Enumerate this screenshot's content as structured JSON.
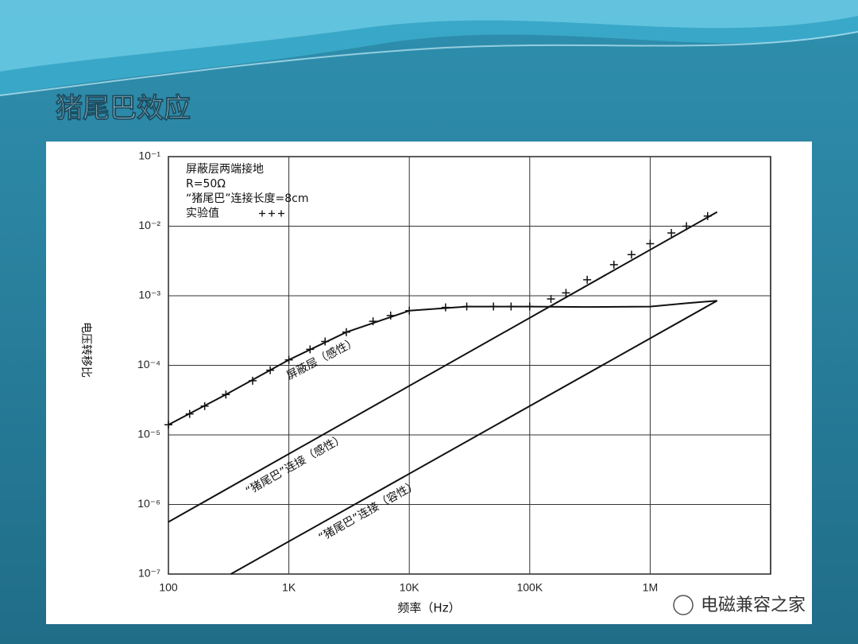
{
  "slide_title": "猪尾巴效应",
  "watermark": "电磁兼容之家",
  "chart_data": {
    "type": "line",
    "xlabel": "频率（Hz）",
    "ylabel": "电压转移比",
    "xlog": true,
    "ylog": true,
    "grid": true,
    "xlim": [
      100,
      10000000
    ],
    "ylim": [
      1e-07,
      0.1
    ],
    "xticks": [
      100,
      {
        "value": 1000,
        "label": "1K"
      },
      {
        "value": 10000,
        "label": "10K"
      },
      {
        "value": 100000,
        "label": "100K"
      },
      {
        "value": 1000000,
        "label": "1M"
      }
    ],
    "yticks": [
      {
        "value": 1e-07,
        "label": "10⁻⁷"
      },
      {
        "value": 1e-06,
        "label": "10⁻⁶"
      },
      {
        "value": 1e-05,
        "label": "10⁻⁵"
      },
      {
        "value": 0.0001,
        "label": "10⁻⁴"
      },
      {
        "value": 0.001,
        "label": "10⁻³"
      },
      {
        "value": 0.01,
        "label": "10⁻²"
      },
      {
        "value": 0.1,
        "label": "10⁻¹"
      }
    ],
    "annotations": [
      "屏蔽层两端接地",
      "R=50Ω",
      "“猪尾巴”连接长度=8cm"
    ],
    "series": [
      {
        "name": "屏蔽层（感性）",
        "color": "#111111",
        "x": [
          100,
          300,
          1000,
          3000,
          10000,
          30000,
          100000,
          300000,
          1000000,
          2000000,
          3600000
        ],
        "values": [
          1.4e-05,
          3.8e-05,
          0.00012,
          0.0003,
          0.00061,
          0.0007,
          0.0007,
          0.00069,
          0.0007,
          0.00078,
          0.00085
        ]
      },
      {
        "name": "“猪尾巴”连接（感性）",
        "color": "#111111",
        "x": [
          100,
          3600000
        ],
        "values": [
          5.6e-07,
          0.016
        ]
      },
      {
        "name": "“猪尾巴”连接（容性）",
        "color": "#111111",
        "x": [
          330,
          3600000
        ],
        "values": [
          1e-07,
          0.00085
        ]
      },
      {
        "name": "实验值",
        "color": "#111111",
        "marker": "+",
        "x": [
          100,
          150,
          200,
          300,
          500,
          700,
          1000,
          1500,
          2000,
          3000,
          5000,
          7000,
          10000,
          20000,
          30000,
          50000,
          70000,
          100000,
          150000,
          200000,
          300000,
          500000,
          700000,
          1000000,
          1500000,
          2000000,
          3000000
        ],
        "values": [
          1.4e-05,
          2e-05,
          2.6e-05,
          3.8e-05,
          6e-05,
          8.5e-05,
          0.00012,
          0.00017,
          0.00022,
          0.0003,
          0.00043,
          0.00052,
          0.00061,
          0.00068,
          0.0007,
          0.0007,
          0.0007,
          0.0007,
          0.0009,
          0.0011,
          0.0017,
          0.0028,
          0.0039,
          0.0056,
          0.008,
          0.01,
          0.014
        ]
      }
    ]
  }
}
